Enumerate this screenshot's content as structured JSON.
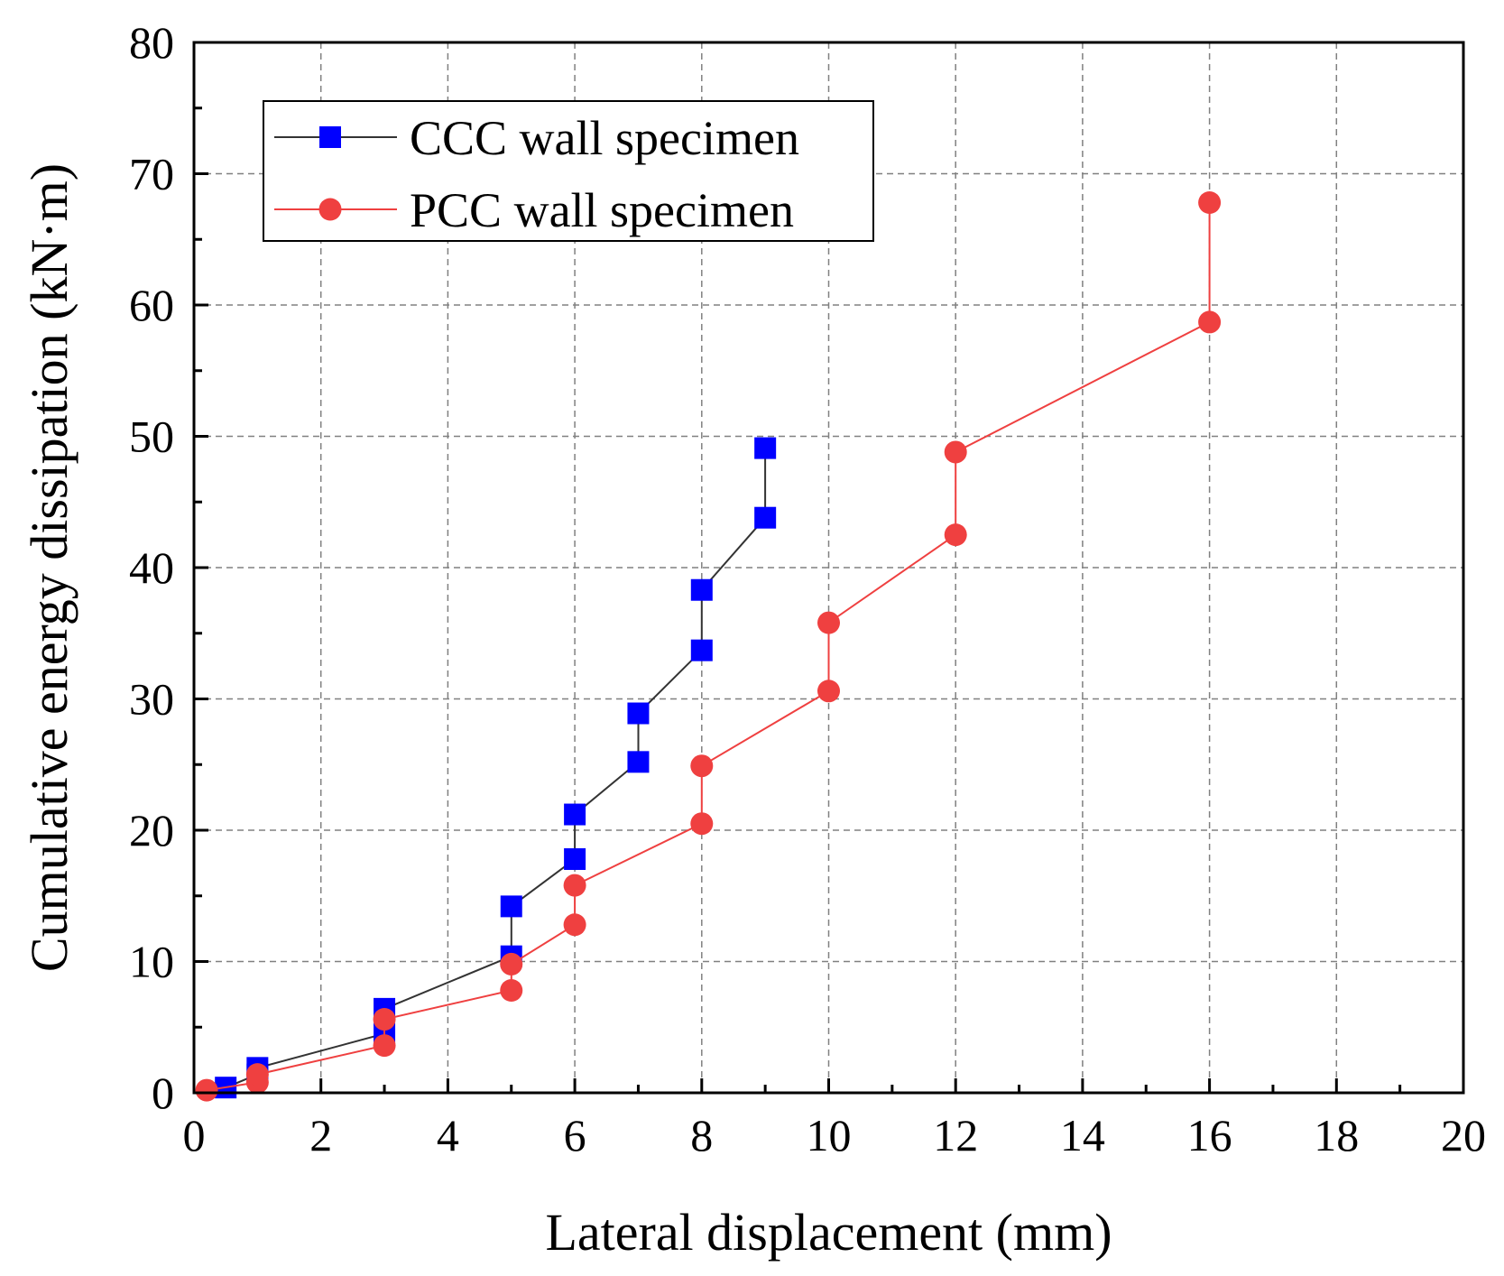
{
  "chart_data": {
    "type": "line",
    "xlabel": "Lateral displacement (mm)",
    "ylabel": "Cumulative energy dissipation (kN·m)",
    "xlim": [
      0,
      20
    ],
    "ylim": [
      0,
      80
    ],
    "x_ticks": [
      0,
      2,
      4,
      6,
      8,
      10,
      12,
      14,
      16,
      18,
      20
    ],
    "y_ticks": [
      0,
      10,
      20,
      30,
      40,
      50,
      60,
      70,
      80
    ],
    "x_tick_labels": [
      "0",
      "2",
      "4",
      "6",
      "8",
      "10",
      "12",
      "14",
      "16",
      "18",
      "20"
    ],
    "y_tick_labels": [
      "0",
      "10",
      "20",
      "30",
      "40",
      "50",
      "60",
      "70",
      "80"
    ],
    "grid": true,
    "legend_position": "top-left",
    "series": [
      {
        "name": "CCC wall specimen",
        "marker": "square",
        "marker_color": "#0000ff",
        "line_color": "#333333",
        "x": [
          0.5,
          1,
          1,
          3,
          3,
          5,
          5,
          6,
          6,
          7,
          7,
          8,
          8,
          9,
          9
        ],
        "y": [
          0.4,
          1.4,
          1.9,
          4.5,
          6.4,
          10.4,
          14.2,
          17.8,
          21.2,
          25.2,
          28.9,
          33.7,
          38.3,
          43.8,
          49.1
        ]
      },
      {
        "name": "PCC wall specimen",
        "marker": "circle",
        "marker_color": "#ef4040",
        "line_color": "#ef4040",
        "x": [
          0.2,
          1,
          1,
          3,
          3,
          5,
          5,
          6,
          6,
          8,
          8,
          10,
          10,
          12,
          12,
          16,
          16
        ],
        "y": [
          0.2,
          0.8,
          1.4,
          3.6,
          5.6,
          7.8,
          9.8,
          12.8,
          15.8,
          20.5,
          24.9,
          30.6,
          35.8,
          42.5,
          48.8,
          58.7,
          67.8
        ]
      }
    ]
  }
}
